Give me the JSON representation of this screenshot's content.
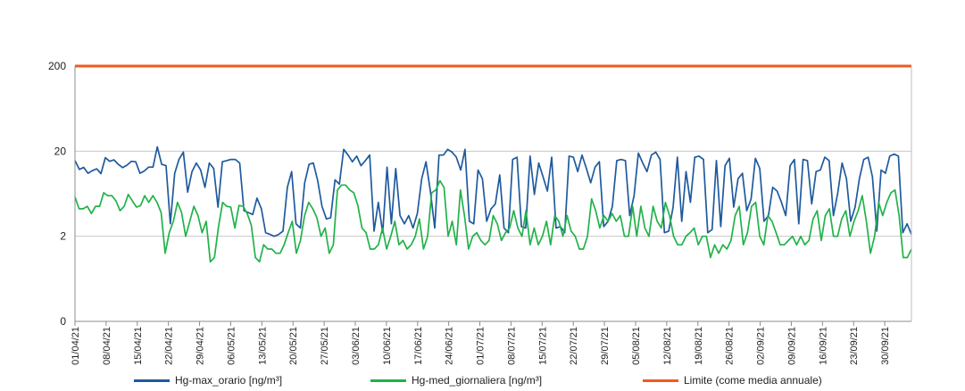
{
  "chart_data": {
    "type": "line",
    "title": "",
    "xlabel": "",
    "ylabel": "",
    "y_scale": "log",
    "y_ticks": [
      "0",
      "2",
      "20",
      "200"
    ],
    "x_ticks": [
      "01/04/21",
      "08/04/21",
      "15/04/21",
      "22/04/21",
      "29/04/21",
      "06/05/21",
      "13/05/21",
      "20/05/21",
      "27/05/21",
      "03/06/21",
      "10/06/21",
      "17/06/21",
      "24/06/21",
      "01/07/21",
      "08/07/21",
      "15/07/21",
      "22/07/21",
      "29/07/21",
      "05/08/21",
      "12/08/21",
      "19/08/21",
      "26/08/21",
      "02/09/21",
      "09/09/21",
      "16/09/21",
      "23/09/21",
      "30/09/21"
    ],
    "x_start": "01/04/21",
    "x_end": "06/10/21",
    "grid": true,
    "legend_position": "bottom",
    "series": [
      {
        "name": "Hg-max_orario [ng/m³]",
        "color": "#1f5a9e",
        "values": [
          15.5,
          12.2,
          12.9,
          11.0,
          11.8,
          12.4,
          10.9,
          16.8,
          15.2,
          15.8,
          14.0,
          12.8,
          13.7,
          15.2,
          15.0,
          11.0,
          11.7,
          13.0,
          13.0,
          22.5,
          14.0,
          13.5,
          2.8,
          11.0,
          16.0,
          19.5,
          6.6,
          11.5,
          14.5,
          12.0,
          7.5,
          14.5,
          12.5,
          4.4,
          15.0,
          15.5,
          16.0,
          16.0,
          14.5,
          4.0,
          3.8,
          3.6,
          5.6,
          4.2,
          2.2,
          2.1,
          2.0,
          2.1,
          2.3,
          7.5,
          11.5,
          2.8,
          2.5,
          8.5,
          14.0,
          14.5,
          9.0,
          4.5,
          3.2,
          3.3,
          9.2,
          8.2,
          21.0,
          18.0,
          15.0,
          17.5,
          13.5,
          15.5,
          18.0,
          2.3,
          5.0,
          2.2,
          13.0,
          2.8,
          12.5,
          3.5,
          2.8,
          3.5,
          2.5,
          3.7,
          9.5,
          15.0,
          6.8,
          2.5,
          18.0,
          18.0,
          21.0,
          19.5,
          17.0,
          12.0,
          21.0,
          3.0,
          2.8,
          12.0,
          9.5,
          3.0,
          4.2,
          4.8,
          10.5,
          2.5,
          2.2,
          16.0,
          17.0,
          2.6,
          2.5,
          17.5,
          6.2,
          14.5,
          10.0,
          6.8,
          17.0,
          2.5,
          2.6,
          2.2,
          17.5,
          17.0,
          11.5,
          18.0,
          12.5,
          8.5,
          13.0,
          15.0,
          2.6,
          3.0,
          4.5,
          15.5,
          16.0,
          15.5,
          3.5,
          6.0,
          19.0,
          14.5,
          11.5,
          18.0,
          19.5,
          16.0,
          2.2,
          2.3,
          4.4,
          17.0,
          3.0,
          11.5,
          5.0,
          17.0,
          17.5,
          16.0,
          2.2,
          2.4,
          15.5,
          2.6,
          13.5,
          16.5,
          4.4,
          9.5,
          11.0,
          4.0,
          5.5,
          16.5,
          12.5,
          3.0,
          3.5,
          7.5,
          6.8,
          5.0,
          3.5,
          13.5,
          16.0,
          2.8,
          16.0,
          15.5,
          4.8,
          11.5,
          12.0,
          17.0,
          15.5,
          3.5,
          6.5,
          14.5,
          9.5,
          3.0,
          4.4,
          9.5,
          16.0,
          17.0,
          10.0,
          2.3,
          12.0,
          11.0,
          17.5,
          18.5,
          17.5,
          2.2,
          2.8,
          2.1
        ]
      },
      {
        "name": "Hg-med_giornaliera [ng/m³]",
        "color": "#22b24a",
        "values": [
          5.8,
          4.2,
          4.2,
          4.5,
          3.7,
          4.5,
          4.5,
          6.5,
          6.0,
          6.0,
          5.2,
          4.0,
          4.5,
          6.2,
          5.2,
          4.4,
          4.6,
          6.0,
          5.0,
          6.0,
          5.0,
          3.8,
          1.6,
          2.2,
          3.0,
          5.0,
          3.8,
          2.0,
          3.0,
          4.5,
          3.5,
          2.2,
          3.0,
          1.4,
          1.5,
          2.6,
          5.0,
          4.5,
          4.4,
          2.5,
          4.6,
          4.5,
          3.7,
          2.7,
          1.5,
          1.4,
          1.8,
          1.7,
          1.7,
          1.6,
          1.6,
          1.8,
          2.2,
          3.0,
          1.6,
          1.9,
          3.5,
          5.0,
          4.2,
          3.3,
          2.0,
          2.5,
          1.6,
          1.8,
          7.0,
          8.0,
          8.0,
          7.0,
          6.5,
          4.6,
          2.5,
          2.2,
          1.7,
          1.7,
          1.8,
          2.5,
          1.7,
          2.0,
          3.0,
          1.8,
          1.9,
          1.7,
          1.8,
          2.0,
          3.2,
          1.7,
          2.0,
          6.5,
          7.0,
          9.0,
          7.5,
          2.0,
          3.0,
          1.8,
          7.0,
          3.5,
          1.7,
          2.0,
          2.2,
          1.9,
          1.8,
          1.9,
          3.5,
          2.8,
          1.9,
          2.2,
          2.5,
          4.0,
          2.5,
          2.0,
          4.0,
          1.8,
          2.5,
          1.8,
          2.0,
          3.0,
          1.8,
          3.5,
          3.0,
          2.0,
          3.5,
          2.3,
          2.0,
          1.7,
          1.7,
          2.0,
          5.5,
          4.0,
          2.5,
          3.5,
          3.0,
          3.7,
          3.0,
          3.5,
          2.0,
          2.0,
          4.5,
          2.0,
          4.5,
          2.5,
          2.0,
          4.5,
          3.0,
          2.5,
          5.0,
          3.5,
          2.0,
          1.8,
          1.8,
          2.0,
          2.2,
          2.5,
          1.8,
          2.0,
          2.0,
          1.5,
          1.8,
          1.6,
          1.8,
          1.7,
          1.9,
          3.5,
          4.5,
          1.8,
          2.2,
          4.5,
          5.0,
          2.0,
          1.8,
          3.5,
          3.0,
          2.2,
          1.8,
          1.8,
          1.9,
          2.0,
          1.8,
          2.0,
          1.8,
          1.9,
          3.2,
          4.0,
          1.9,
          3.5,
          4.2,
          2.0,
          2.0,
          3.2,
          4.0,
          2.0,
          3.0,
          4.0,
          6.0,
          3.0,
          1.6,
          2.0,
          5.0,
          3.5,
          5.0,
          6.5,
          7.0,
          3.5,
          1.5,
          1.5,
          1.7
        ]
      },
      {
        "name": "Limite (come media annuale)",
        "color": "#f05a1e",
        "values": [
          200,
          200
        ]
      }
    ]
  }
}
